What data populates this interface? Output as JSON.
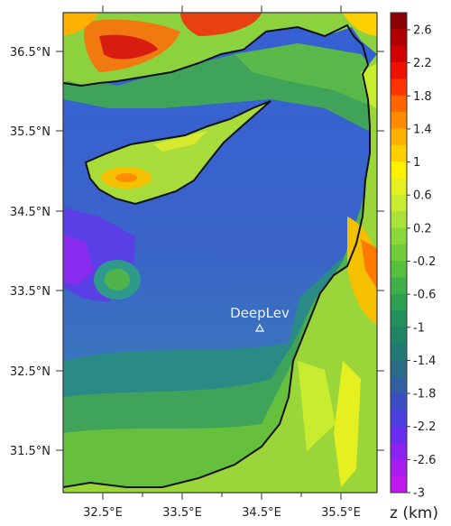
{
  "map": {
    "lon_ticks": [
      "32.5°E",
      "33.5°E",
      "34.5°E",
      "35.5°E"
    ],
    "lat_ticks": [
      "36.5°N",
      "35.5°N",
      "34.5°N",
      "33.5°N",
      "32.5°N",
      "31.5°N"
    ],
    "site_label": "DeepLev"
  },
  "colorbar": {
    "unit": "z (km)",
    "labels": [
      "2.6",
      "2.2",
      "1.8",
      "1.4",
      "1",
      "0.6",
      "0.2",
      "-0.2",
      "-0.6",
      "-1",
      "-1.4",
      "-1.8",
      "-2.2",
      "-2.6",
      "-3"
    ],
    "colors": [
      "#8b0000",
      "#b00000",
      "#d00000",
      "#ee1100",
      "#ff3300",
      "#ff6600",
      "#ff8c00",
      "#ffb000",
      "#ffd000",
      "#fff000",
      "#e6f020",
      "#c8ec30",
      "#aae23a",
      "#8cd83a",
      "#70cc38",
      "#55bf40",
      "#3fb048",
      "#2ea050",
      "#22905a",
      "#1f8466",
      "#217a76",
      "#296e86",
      "#3060a0",
      "#3a4fc2",
      "#4a3fe0",
      "#6a2ef0",
      "#8c22f2",
      "#a81cf0",
      "#c018ee"
    ]
  },
  "colors": {
    "deep_blue": "#3a5cd6",
    "mid_blue": "#3f7bbf",
    "teal": "#2f9a8c",
    "green": "#4fb24a",
    "light_green": "#8cd23f",
    "land_green": "#9ad63a",
    "purple": "#8a2cf0",
    "coast": "#111111"
  }
}
